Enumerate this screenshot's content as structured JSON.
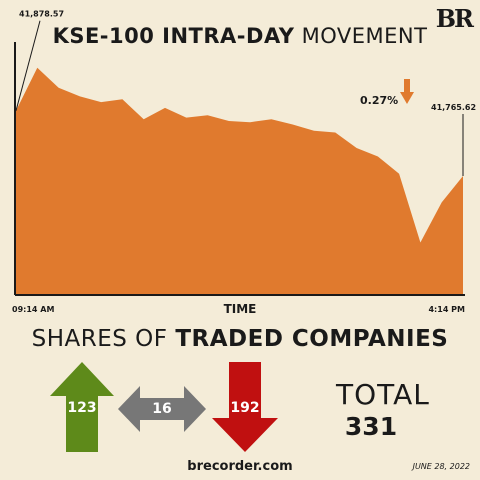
{
  "header": {
    "title_bold": "KSE-100 INTRA-DAY",
    "title_normal": "MOVEMENT",
    "logo": "BR"
  },
  "chart_data": {
    "type": "area",
    "title": "KSE-100 INTRA-DAY MOVEMENT",
    "xlabel": "TIME",
    "ylabel": "",
    "x_ticks": [
      "09:14 AM",
      "4:14 PM"
    ],
    "open_value": "41,878.57",
    "close_value": "41,765.62",
    "change": "0.27%",
    "change_direction": "down",
    "color": "#e07a2e",
    "ylim": [
      41560,
      42000
    ],
    "series": [
      {
        "x": [
          "09:14",
          "09:30",
          "09:50",
          "10:10",
          "10:30",
          "10:50",
          "11:10",
          "11:30",
          "11:50",
          "12:10",
          "12:30",
          "12:50",
          "13:10",
          "13:30",
          "13:50",
          "14:10",
          "14:30",
          "14:50",
          "15:10",
          "15:30",
          "15:50",
          "16:14"
        ],
        "values": [
          41880,
          41955,
          41920,
          41905,
          41895,
          41900,
          41865,
          41885,
          41868,
          41872,
          41862,
          41860,
          41865,
          41856,
          41845,
          41842,
          41815,
          41800,
          41770,
          41650,
          41720,
          41766
        ]
      }
    ]
  },
  "shares": {
    "title_normal": "SHARES OF",
    "title_bold": "TRADED COMPANIES",
    "advanced": "123",
    "unchanged": "16",
    "declined": "192",
    "colors": {
      "advanced": "#5e8a1a",
      "unchanged": "#777777",
      "declined": "#c01010"
    },
    "total_label": "TOTAL",
    "total_value": "331"
  },
  "footer": {
    "website": "brecorder.com",
    "date": "JUNE 28, 2022"
  }
}
